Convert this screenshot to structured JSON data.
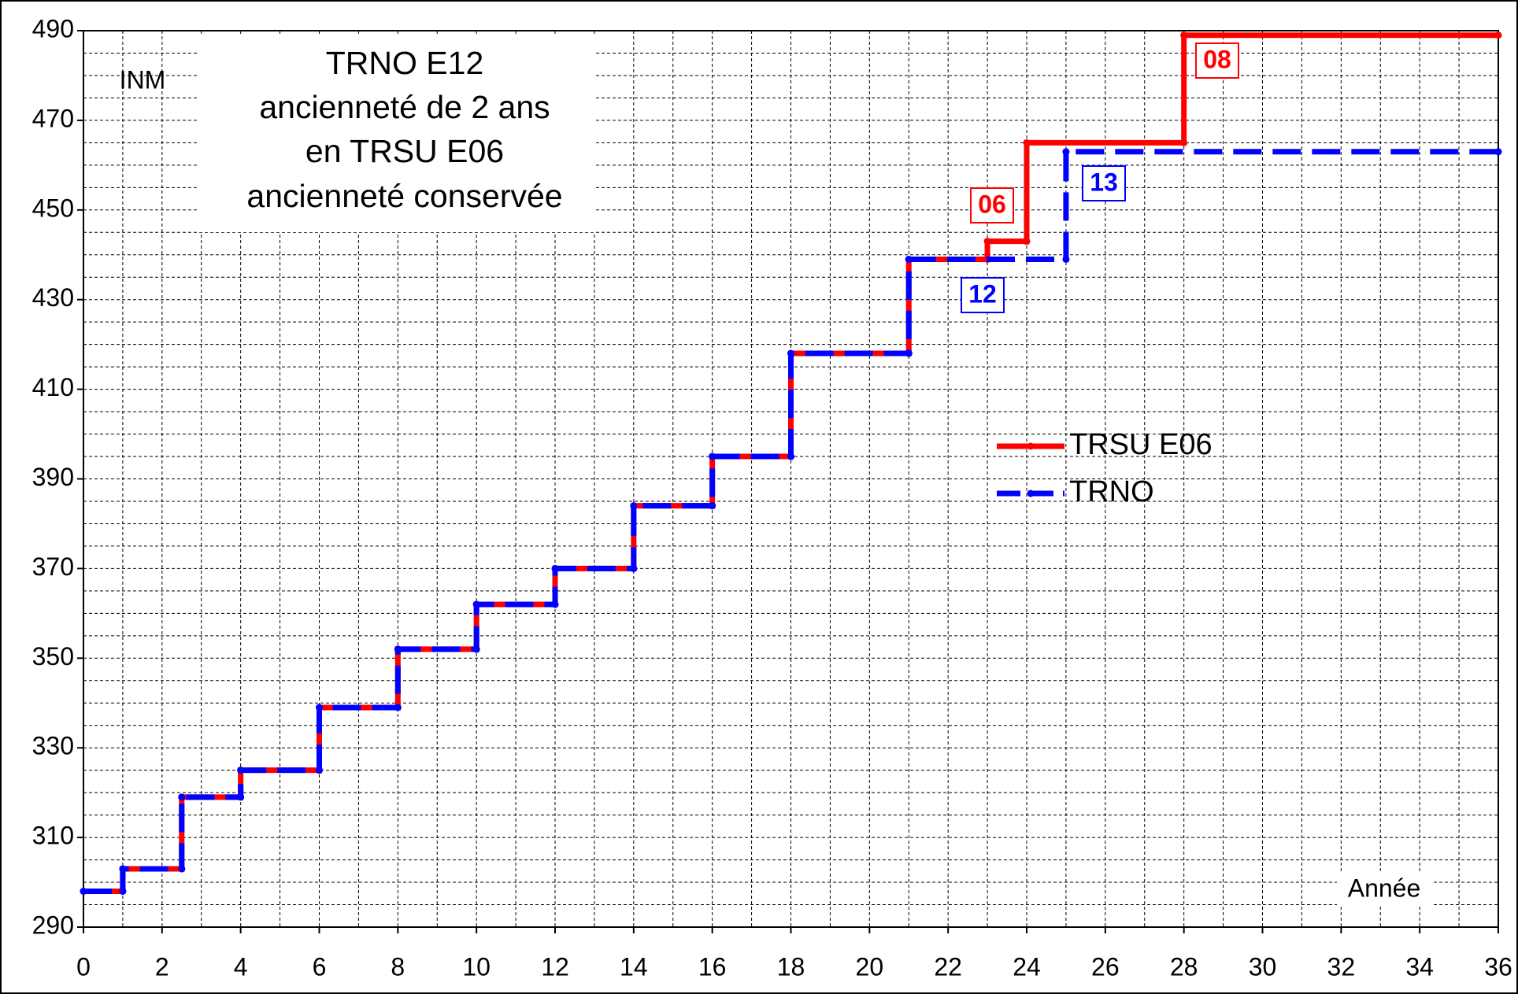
{
  "chart_data": {
    "type": "line",
    "title_lines": [
      "TRNO E12",
      "ancienneté de 2 ans",
      "en TRSU E06",
      "ancienneté conservée"
    ],
    "ylabel": "INM",
    "xlabel": "Année",
    "xlim": [
      0,
      36
    ],
    "ylim": [
      290,
      490
    ],
    "xticks": [
      0,
      2,
      4,
      6,
      8,
      10,
      12,
      14,
      16,
      18,
      20,
      22,
      24,
      26,
      28,
      30,
      32,
      34,
      36
    ],
    "yticks": [
      290,
      310,
      330,
      350,
      370,
      390,
      410,
      430,
      450,
      470,
      490
    ],
    "xgrid": [
      0,
      1,
      2,
      3,
      4,
      5,
      6,
      7,
      8,
      9,
      10,
      11,
      12,
      13,
      14,
      15,
      16,
      17,
      18,
      19,
      20,
      21,
      22,
      23,
      24,
      25,
      26,
      27,
      28,
      29,
      30,
      31,
      32,
      33,
      34,
      35,
      36
    ],
    "ygrid": [
      290,
      295,
      300,
      305,
      310,
      315,
      320,
      325,
      330,
      335,
      340,
      345,
      350,
      355,
      360,
      365,
      370,
      375,
      380,
      385,
      390,
      395,
      400,
      405,
      410,
      415,
      420,
      425,
      430,
      435,
      440,
      445,
      450,
      455,
      460,
      465,
      470,
      475,
      480,
      485,
      490
    ],
    "grid": true,
    "legend": "right",
    "series": [
      {
        "name": "TRSU E06",
        "color": "#ff0000",
        "dashed": false,
        "x": [
          0,
          1,
          1,
          2.5,
          2.5,
          4,
          4,
          6,
          6,
          8,
          8,
          10,
          10,
          12,
          12,
          14,
          14,
          16,
          16,
          18,
          18,
          21,
          21,
          23,
          23,
          24,
          24,
          28,
          28,
          36
        ],
        "values": [
          298,
          298,
          303,
          303,
          319,
          319,
          325,
          325,
          339,
          339,
          352,
          352,
          362,
          362,
          370,
          370,
          384,
          384,
          395,
          395,
          418,
          418,
          439,
          439,
          443,
          443,
          465,
          465,
          489,
          489
        ]
      },
      {
        "name": "TRNO",
        "color": "#0000ff",
        "dashed": true,
        "x": [
          0,
          1,
          1,
          2.5,
          2.5,
          4,
          4,
          6,
          6,
          8,
          8,
          10,
          10,
          12,
          12,
          14,
          14,
          16,
          16,
          18,
          18,
          21,
          21,
          25,
          25,
          36
        ],
        "values": [
          298,
          298,
          303,
          303,
          319,
          319,
          325,
          325,
          339,
          339,
          352,
          352,
          362,
          362,
          370,
          370,
          384,
          384,
          395,
          395,
          418,
          418,
          439,
          439,
          463,
          463
        ]
      }
    ],
    "annotations": [
      {
        "text": "06",
        "color": "#ff0000"
      },
      {
        "text": "08",
        "color": "#ff0000"
      },
      {
        "text": "12",
        "color": "#0000ff"
      },
      {
        "text": "13",
        "color": "#0000ff"
      }
    ]
  }
}
